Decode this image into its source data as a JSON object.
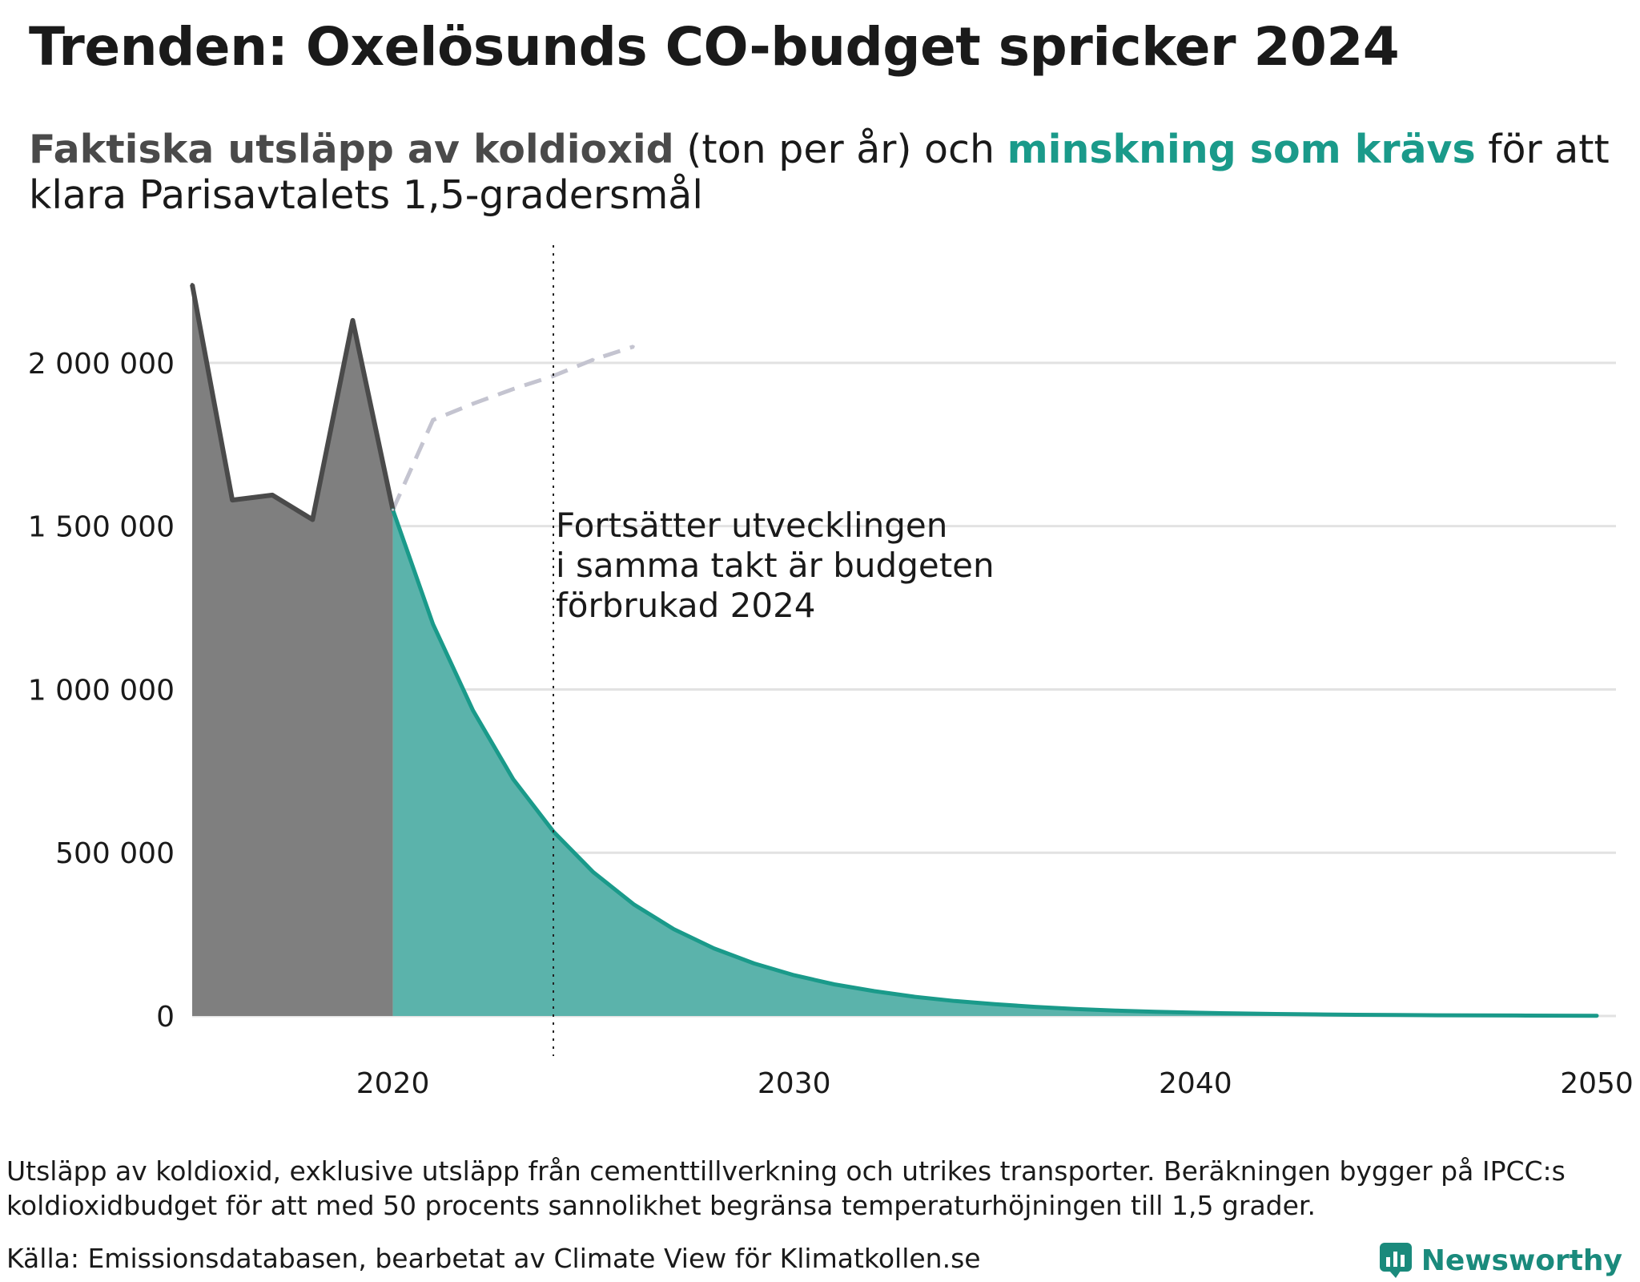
{
  "title": "Trenden: Oxelösunds CO-budget spricker 2024",
  "subtitle": {
    "actual_label": "Faktiska utsläpp av koldioxid",
    "unit_text": " (ton per år) och ",
    "required_label": "minskning som krävs",
    "rest": " för att klara Parisavtalets 1,5-gradersmål"
  },
  "colors": {
    "actual": "#4a4a4a",
    "actual_fill": "#7f7f7f",
    "required": "#1a9a8a",
    "required_fill": "#5bb3ab",
    "trend": "#c4c4d0",
    "grid": "#e2e2e2"
  },
  "chart_data": {
    "type": "area",
    "xlim": [
      2015,
      2050
    ],
    "ylim": [
      0,
      2250000
    ],
    "x_ticks": [
      2020,
      2030,
      2040,
      2050
    ],
    "x_tick_labels": [
      "2020",
      "2030",
      "2040",
      "2050"
    ],
    "y_ticks": [
      0,
      500000,
      1000000,
      1500000,
      2000000
    ],
    "y_tick_labels": [
      "0",
      "500 000",
      "1 000 000",
      "1 500 000",
      "2 000 000"
    ],
    "grid": true,
    "series": [
      {
        "style": "filled-area",
        "x": [
          2015,
          2016,
          2017,
          2018,
          2019,
          2020
        ],
        "y": [
          2240000,
          1580000,
          1595000,
          1520000,
          2130000,
          1550000
        ]
      },
      {
        "style": "filled-area",
        "x": [
          2020,
          2021,
          2022,
          2023,
          2024,
          2025,
          2026,
          2027,
          2028,
          2029,
          2030,
          2031,
          2032,
          2033,
          2034,
          2035,
          2036,
          2037,
          2038,
          2039,
          2040,
          2041,
          2042,
          2043,
          2044,
          2045,
          2046,
          2047,
          2048,
          2049,
          2050
        ],
        "y": [
          1550000,
          1200000,
          935000,
          725000,
          565000,
          440000,
          342000,
          266000,
          207000,
          161000,
          125000,
          97000,
          76000,
          59000,
          46000,
          36000,
          28000,
          21500,
          16800,
          13000,
          10100,
          7900,
          6100,
          4800,
          3700,
          2900,
          2200,
          1700,
          1350,
          1050,
          800
        ]
      },
      {
        "style": "dashed",
        "x": [
          2020,
          2021,
          2022,
          2023,
          2024,
          2025,
          2026
        ],
        "y": [
          1550000,
          1825000,
          1875000,
          1920000,
          1960000,
          2010000,
          2050000
        ]
      }
    ],
    "marker_year": 2024,
    "annotation": [
      "Fortsätter utvecklingen",
      "i samma takt är budgeten",
      "förbrukad 2024"
    ]
  },
  "footnote": "Utsläpp av koldioxid, exklusive utsläpp från cementtillverkning och utrikes transporter. Beräkningen bygger på IPCC:s koldioxidbudget för att med 50 procents sannolikhet begränsa temperaturhöjningen till 1,5 grader.",
  "source": "Källa: Emissionsdatabasen, bearbetat av Climate View för Klimatkollen.se",
  "brand": "Newsworthy"
}
